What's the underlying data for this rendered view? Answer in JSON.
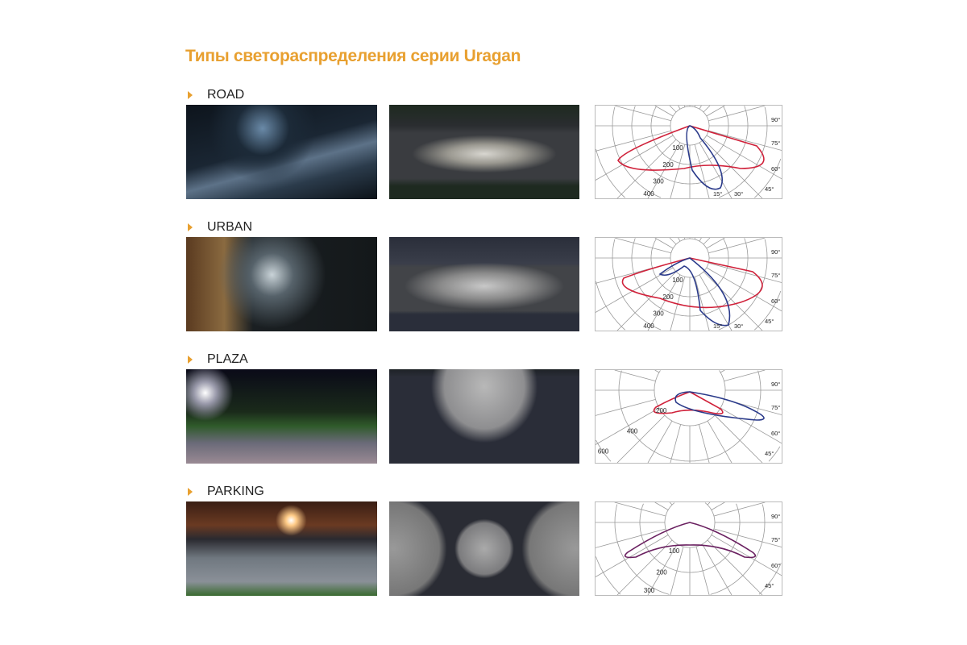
{
  "title": "Типы светораспределения серии Uragan",
  "accent_color": "#e8a030",
  "rows": [
    {
      "label": "ROAD",
      "rings": [
        "100",
        "200",
        "300",
        "400"
      ],
      "angles": [
        "90°",
        "75°",
        "60°",
        "45°",
        "30°",
        "15°"
      ],
      "curves": [
        "red",
        "blue"
      ]
    },
    {
      "label": "URBAN",
      "rings": [
        "100",
        "200",
        "300",
        "400"
      ],
      "angles": [
        "90°",
        "75°",
        "60°",
        "45°",
        "30°",
        "15°"
      ],
      "curves": [
        "red",
        "blue"
      ]
    },
    {
      "label": "PLAZA",
      "rings": [
        "200",
        "400",
        "600"
      ],
      "angles": [
        "90°",
        "75°",
        "60°",
        "45°"
      ],
      "curves": [
        "red",
        "blue"
      ]
    },
    {
      "label": "PARKING",
      "rings": [
        "100",
        "200",
        "300"
      ],
      "angles": [
        "90°",
        "75°",
        "60°",
        "45°"
      ],
      "curves": [
        "purple"
      ]
    }
  ],
  "curve_colors": {
    "red": "#d0213a",
    "blue": "#2a3a8a",
    "purple": "#6a2060"
  }
}
